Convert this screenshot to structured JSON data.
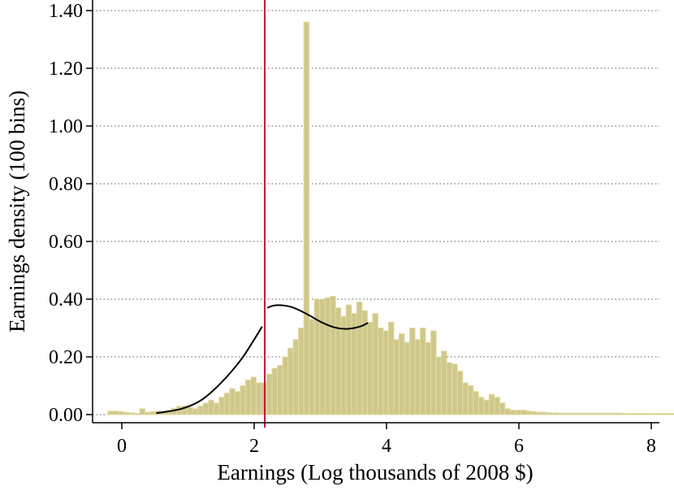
{
  "chart_data": {
    "type": "bar",
    "xlabel": "Earnings (Log thousands of 2008 $)",
    "ylabel": "Earnings density (100 bins)",
    "xlim": [
      -0.3,
      8.2
    ],
    "ylim": [
      0,
      1.42
    ],
    "xticks": [
      0,
      2,
      4,
      6,
      8
    ],
    "yticks": [
      0.0,
      0.2,
      0.4,
      0.6,
      0.8,
      1.0,
      1.2,
      1.4
    ],
    "xtick_labels": [
      "0",
      "2",
      "4",
      "6",
      "8"
    ],
    "ytick_labels": [
      "0.00",
      "0.20",
      "0.40",
      "0.60",
      "0.80",
      "1.00",
      "1.20",
      "1.40"
    ],
    "grid": "horizontal dotted",
    "vertical_line_x": 2.16,
    "colors": {
      "bars": "#cfc88c",
      "bar_edge": "#e2da9f",
      "curve": "#000000",
      "vline": "#c8103e"
    },
    "bins": {
      "x_start": -0.21,
      "bin_width": 0.08,
      "values": [
        0.012,
        0.012,
        0.01,
        0.008,
        0.006,
        0.004,
        0.02,
        0.008,
        0.01,
        0.012,
        0.01,
        0.015,
        0.022,
        0.028,
        0.03,
        0.025,
        0.02,
        0.03,
        0.04,
        0.05,
        0.04,
        0.06,
        0.075,
        0.09,
        0.08,
        0.1,
        0.12,
        0.13,
        0.11,
        0.11,
        0.14,
        0.16,
        0.17,
        0.2,
        0.23,
        0.26,
        0.3,
        1.36,
        0.33,
        0.4,
        0.4,
        0.405,
        0.41,
        0.37,
        0.34,
        0.38,
        0.35,
        0.39,
        0.36,
        0.32,
        0.35,
        0.3,
        0.29,
        0.32,
        0.26,
        0.28,
        0.25,
        0.3,
        0.26,
        0.3,
        0.25,
        0.29,
        0.2,
        0.22,
        0.18,
        0.175,
        0.15,
        0.11,
        0.1,
        0.08,
        0.06,
        0.05,
        0.07,
        0.06,
        0.04,
        0.02,
        0.015,
        0.015,
        0.015,
        0.012,
        0.01,
        0.008,
        0.008,
        0.006,
        0.006,
        0.005,
        0.005,
        0.005,
        0.005,
        0.005,
        0.005,
        0.005,
        0.005,
        0.005,
        0.005,
        0.005,
        0.005,
        0.004,
        0.004,
        0.004,
        0.004,
        0.004,
        0.004,
        0.004,
        0.004,
        0.004,
        0.004,
        0.004,
        0.004,
        0.004
      ]
    },
    "curve_below": {
      "x": [
        0.52,
        0.9,
        1.2,
        1.5,
        1.8,
        2.0,
        2.12
      ],
      "y": [
        0.005,
        0.02,
        0.05,
        0.11,
        0.19,
        0.26,
        0.305
      ]
    },
    "curve_above": {
      "x": [
        2.2,
        2.3,
        2.45,
        2.6,
        2.8,
        3.0,
        3.2,
        3.4,
        3.6,
        3.72
      ],
      "y": [
        0.37,
        0.378,
        0.378,
        0.37,
        0.348,
        0.322,
        0.303,
        0.297,
        0.305,
        0.318
      ]
    }
  }
}
